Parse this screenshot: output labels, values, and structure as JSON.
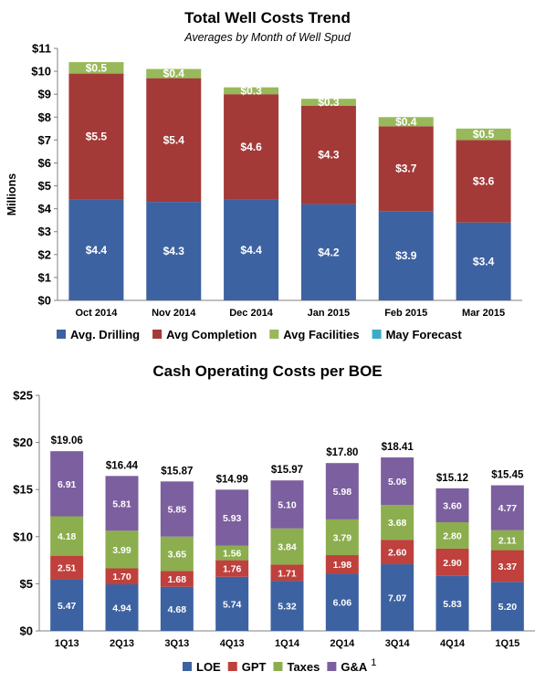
{
  "chart_data": [
    {
      "type": "bar",
      "stacked": true,
      "title": "Total Well Costs Trend",
      "subtitle": "Averages by Month of Well Spud",
      "ylabel": "Millions",
      "xlabel": "",
      "ylim": [
        0,
        11
      ],
      "yticks": [
        "$0",
        "$1",
        "$2",
        "$3",
        "$4",
        "$5",
        "$6",
        "$7",
        "$8",
        "$9",
        "$10",
        "$11"
      ],
      "categories": [
        "Oct 2014",
        "Nov 2014",
        "Dec 2014",
        "Jan 2015",
        "Feb 2015",
        "Mar 2015"
      ],
      "series": [
        {
          "name": "Avg. Drilling",
          "color": "#3d62a1",
          "values": [
            4.4,
            4.3,
            4.4,
            4.2,
            3.9,
            3.4
          ],
          "labels": [
            "$4.4",
            "$4.3",
            "$4.4",
            "$4.2",
            "$3.9",
            "$3.4"
          ]
        },
        {
          "name": "Avg Completion",
          "color": "#a33a38",
          "values": [
            5.5,
            5.4,
            4.6,
            4.3,
            3.7,
            3.6
          ],
          "labels": [
            "$5.5",
            "$5.4",
            "$4.6",
            "$4.3",
            "$3.7",
            "$3.6"
          ]
        },
        {
          "name": "Avg Facilities",
          "color": "#98b95a",
          "values": [
            0.5,
            0.4,
            0.3,
            0.3,
            0.4,
            0.5
          ],
          "labels": [
            "$0.5",
            "$0.4",
            "$0.3",
            "$0.3",
            "$0.4",
            "$0.5"
          ]
        },
        {
          "name": "May Forecast",
          "color": "#3aacc6",
          "values": [
            0,
            0,
            0,
            0,
            0,
            0
          ],
          "labels": [
            "",
            "",
            "",
            "",
            "",
            ""
          ]
        }
      ],
      "legend_position": "bottom",
      "grid": false
    },
    {
      "type": "bar",
      "stacked": true,
      "title": "Cash Operating Costs per BOE",
      "xlabel": "",
      "ylabel": "",
      "ylim": [
        0,
        25
      ],
      "yticks": [
        "$0",
        "$5",
        "$10",
        "$15",
        "$20",
        "$25"
      ],
      "categories": [
        "1Q13",
        "2Q13",
        "3Q13",
        "4Q13",
        "1Q14",
        "2Q14",
        "3Q14",
        "4Q14",
        "1Q15"
      ],
      "totals": [
        "$19.06",
        "$16.44",
        "$15.87",
        "$14.99",
        "$15.97",
        "$17.80",
        "$18.41",
        "$15.12",
        "$15.45"
      ],
      "series": [
        {
          "name": "LOE",
          "color": "#3d62a1",
          "values": [
            5.47,
            4.94,
            4.68,
            5.74,
            5.32,
            6.06,
            7.07,
            5.83,
            5.2
          ],
          "labels": [
            "5.47",
            "4.94",
            "4.68",
            "5.74",
            "5.32",
            "6.06",
            "7.07",
            "5.83",
            "5.20"
          ]
        },
        {
          "name": "GPT",
          "color": "#bf403c",
          "values": [
            2.51,
            1.7,
            1.68,
            1.76,
            1.71,
            1.98,
            2.6,
            2.9,
            3.37
          ],
          "labels": [
            "2.51",
            "1.70",
            "1.68",
            "1.76",
            "1.71",
            "1.98",
            "2.60",
            "2.90",
            "3.37"
          ]
        },
        {
          "name": "Taxes",
          "color": "#8cae4e",
          "values": [
            4.18,
            3.99,
            3.65,
            1.56,
            3.84,
            3.79,
            3.68,
            2.8,
            2.11
          ],
          "labels": [
            "4.18",
            "3.99",
            "3.65",
            "1.56",
            "3.84",
            "3.79",
            "3.68",
            "2.80",
            "2.11"
          ]
        },
        {
          "name": "G&A",
          "color": "#7c5f9e",
          "values": [
            6.91,
            5.81,
            5.85,
            5.93,
            5.1,
            5.98,
            5.06,
            3.6,
            4.77
          ],
          "labels": [
            "6.91",
            "5.81",
            "5.85",
            "5.93",
            "5.10",
            "5.98",
            "5.06",
            "3.60",
            "4.77"
          ]
        }
      ],
      "footnote": "1",
      "legend_position": "bottom",
      "grid": false
    }
  ]
}
